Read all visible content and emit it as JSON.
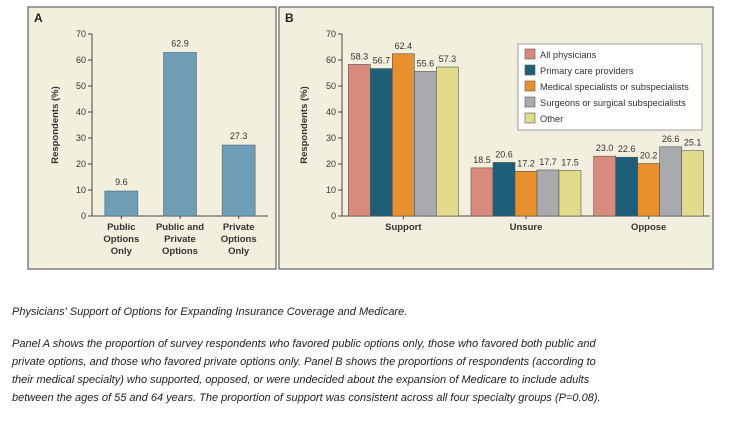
{
  "colors": {
    "panel_bg": "#f3efdf",
    "panel_border": "#6e6e6e",
    "panel_a_bar": "#6f9db6",
    "all_physicians": "#d88a7c",
    "primary_care": "#1f5e78",
    "medical_specialists": "#e8902e",
    "surgeons": "#a8aaad",
    "other": "#e3db8c"
  },
  "chart_data": [
    {
      "type": "bar",
      "panel_label": "A",
      "categories": [
        [
          "Public",
          "Options",
          "Only"
        ],
        [
          "Public and",
          "Private",
          "Options"
        ],
        [
          "Private",
          "Options",
          "Only"
        ]
      ],
      "values": [
        9.6,
        62.9,
        27.3
      ],
      "value_labels": [
        "9.6",
        "62.9",
        "27.3"
      ],
      "ylabel": "Respondents (%)",
      "ylim": [
        0,
        70
      ],
      "yticks": [
        0,
        10,
        20,
        30,
        40,
        50,
        60,
        70
      ],
      "grid": false,
      "legend": "none"
    },
    {
      "type": "bar",
      "panel_label": "B",
      "categories": [
        "Support",
        "Unsure",
        "Oppose"
      ],
      "series": [
        {
          "name": "All physicians",
          "color_key": "all_physicians",
          "values": [
            58.3,
            18.5,
            23.0
          ],
          "labels": [
            "58.3",
            "18.5",
            "23.0"
          ]
        },
        {
          "name": "Primary care providers",
          "color_key": "primary_care",
          "values": [
            56.7,
            20.6,
            22.6
          ],
          "labels": [
            "56.7",
            "20.6",
            "22.6"
          ]
        },
        {
          "name": "Medical specialists or subspecialists",
          "color_key": "medical_specialists",
          "values": [
            62.4,
            17.2,
            20.2
          ],
          "labels": [
            "62.4",
            "17.2",
            "20.2"
          ]
        },
        {
          "name": "Surgeons or surgical subspecialists",
          "color_key": "surgeons",
          "values": [
            55.6,
            17.7,
            26.6
          ],
          "labels": [
            "55.6",
            "17.7",
            "26.6"
          ]
        },
        {
          "name": "Other",
          "color_key": "other",
          "values": [
            57.3,
            17.5,
            25.1
          ],
          "labels": [
            "57.3",
            "17.5",
            "25.1"
          ]
        }
      ],
      "ylabel": "Respondents (%)",
      "ylim": [
        0,
        70
      ],
      "yticks": [
        0,
        10,
        20,
        30,
        40,
        50,
        60,
        70
      ],
      "grid": false,
      "legend": "top-right"
    }
  ],
  "caption": {
    "title": "Physicians' Support of Options for Expanding Insurance Coverage and Medicare.",
    "body": "Panel A shows the proportion of survey respondents who favored public options only, those who favored both public and private options, and those who favored private options only. Panel B shows the proportions of respondents (according to their medical specialty) who supported, opposed, or were undecided about the expansion of Medicare to include adults between the ages of 55 and 64 years. The proportion of support was consistent across all four specialty groups (P=0.08)."
  }
}
